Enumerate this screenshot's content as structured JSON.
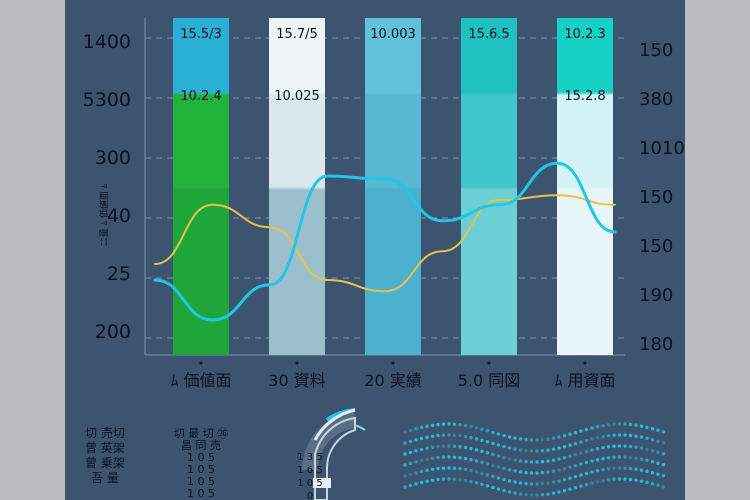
{
  "chart_data": {
    "type": "bar",
    "categories": [
      "ﾑ 価値面",
      "30 資料",
      "20 実績",
      "5.0 同図",
      "ﾑ 用資面"
    ],
    "top_labels": [
      "15.5/3",
      "15.7/5",
      "10.003",
      "15.6.5",
      "10.2.3"
    ],
    "inner_labels": [
      "10.2.4",
      "10.025",
      "",
      "",
      "15.2.8"
    ],
    "series": [
      {
        "values": [
          1400,
          1400,
          1400,
          1400,
          1400
        ],
        "colors": [
          "#2ab0d4",
          "#eef3f5",
          "#5fc2da",
          "#1fc1c0",
          "#18d1c5"
        ]
      },
      {
        "values": [
          1150,
          1120,
          1400,
          1400,
          1360
        ],
        "colors": [
          "#22b43a",
          "#dbe8ee",
          "#56b8d3",
          "#3fc5cb",
          "#d4f3f6"
        ]
      },
      {
        "values": [
          900,
          870,
          1400,
          1400,
          1360
        ],
        "colors": [
          "#1ea63b",
          "#9cbfcd",
          "#4cb1cf",
          "#6ad0d5",
          "#e6f5f8"
        ]
      }
    ],
    "left_axis_labels": [
      "1400",
      "5300",
      "300",
      "40",
      "25",
      "200"
    ],
    "right_axis_labels": [
      "150",
      "380",
      "1010",
      "150",
      "150",
      "190",
      "180"
    ],
    "ylabel": "ﾆﾆ量 ﾑ 価値面 ﾑ",
    "line_cyan": [
      0.25,
      0.0,
      0.22,
      0.9,
      0.88,
      0.62,
      0.72,
      0.98,
      0.55
    ],
    "line_yellow": [
      0.35,
      0.72,
      0.58,
      0.25,
      0.18,
      0.43,
      0.75,
      0.78,
      0.72
    ],
    "colors": {
      "background": "#3d5470",
      "grid": "#7d92a8",
      "cyan": "#22c6e6",
      "yellow": "#e6c24a",
      "text": "#0b1220"
    }
  },
  "bottom": {
    "left_labels": [
      "切 売切",
      "曾 英架",
      "曾 乗架",
      "吾 量"
    ],
    "mid_labels": [
      "切 最 切 ㉖",
      "昌 同 売",
      "1 0 5",
      "1 0 5",
      "1 0 5",
      "1 0 5"
    ],
    "gauge_labels": [
      "1 3 5",
      "1 6 5",
      "1 0 5",
      "0"
    ],
    "heat_rows": 6
  }
}
